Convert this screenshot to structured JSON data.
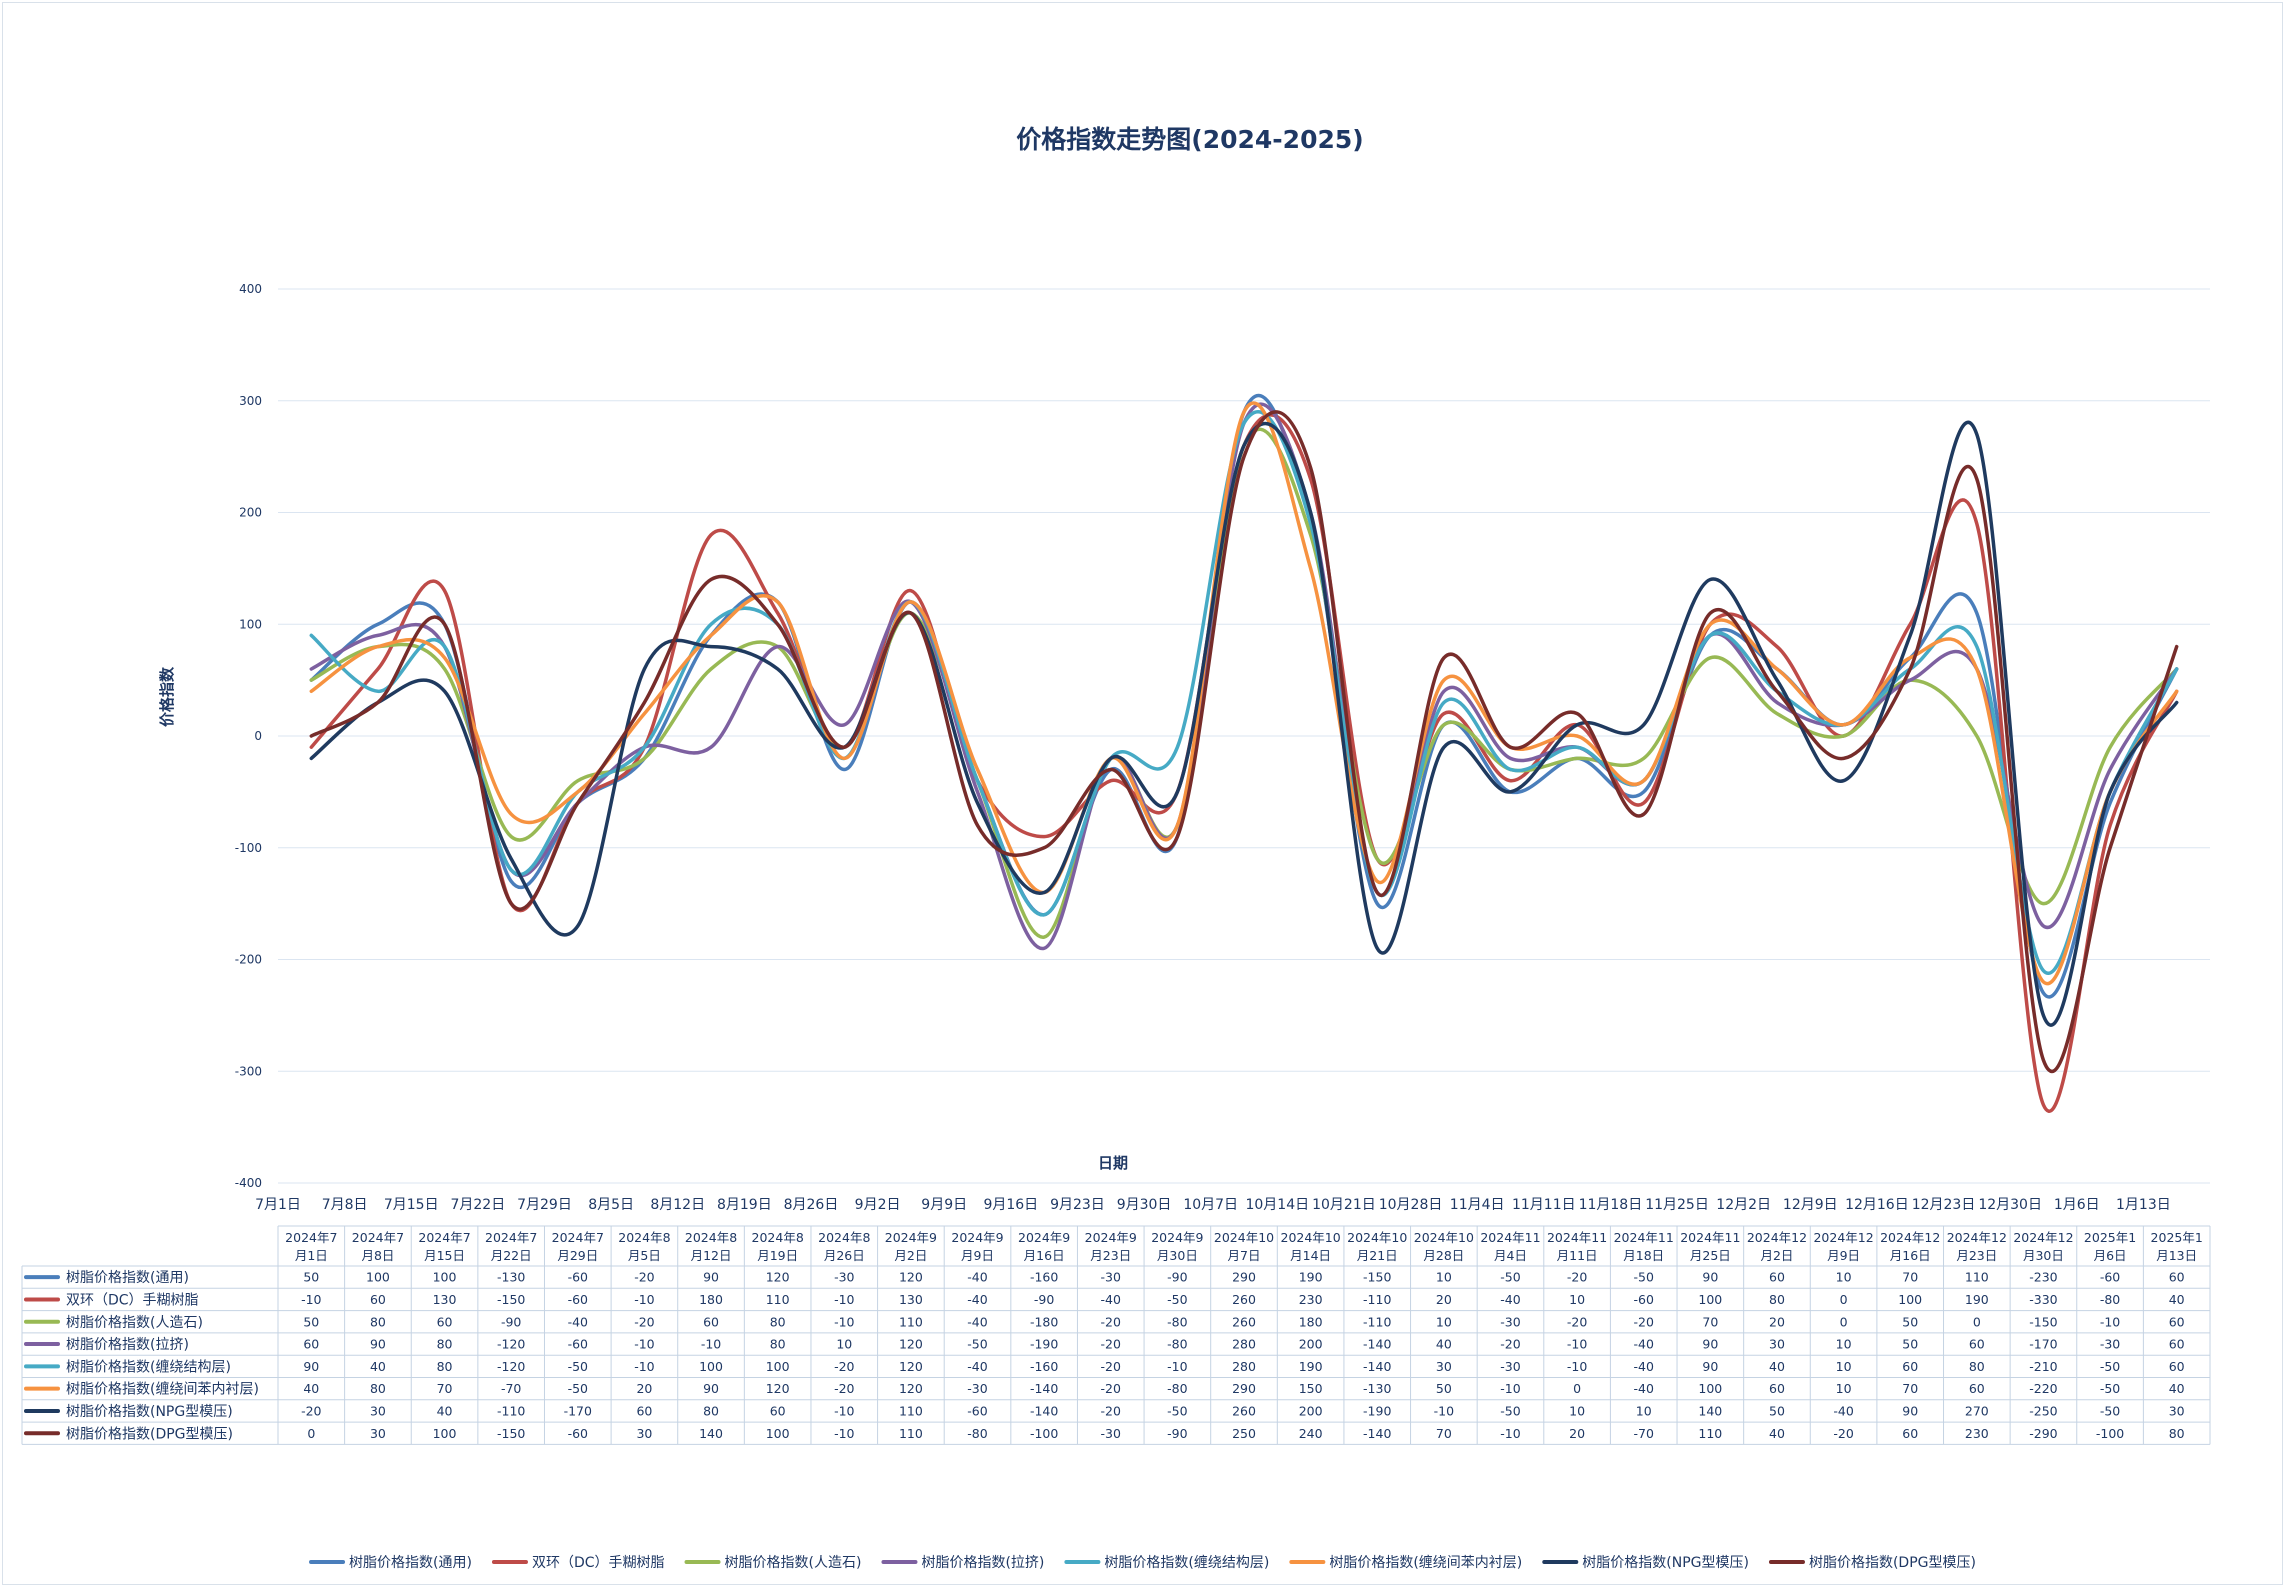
{
  "chart_data": {
    "type": "line",
    "title": "价格指数走势图(2024-2025)",
    "xlabel": "日期",
    "ylabel": "价格指数",
    "ylim": [
      -400,
      400
    ],
    "yticks": [
      400,
      300,
      200,
      100,
      0,
      -100,
      -200,
      -300,
      -400
    ],
    "grid": true,
    "legend_position": "bottom",
    "categories": [
      "7月1日",
      "7月8日",
      "7月15日",
      "7月22日",
      "7月29日",
      "8月5日",
      "8月12日",
      "8月19日",
      "8月26日",
      "9月2日",
      "9月9日",
      "9月16日",
      "9月23日",
      "9月30日",
      "10月7日",
      "10月14日",
      "10月21日",
      "10月28日",
      "11月4日",
      "11月11日",
      "11月18日",
      "11月25日",
      "12月2日",
      "12月9日",
      "12月16日",
      "12月23日",
      "12月30日",
      "1月6日",
      "1月13日"
    ],
    "table_headers": [
      [
        "2024年7",
        "月1日"
      ],
      [
        "2024年7",
        "月8日"
      ],
      [
        "2024年7",
        "月15日"
      ],
      [
        "2024年7",
        "月22日"
      ],
      [
        "2024年7",
        "月29日"
      ],
      [
        "2024年8",
        "月5日"
      ],
      [
        "2024年8",
        "月12日"
      ],
      [
        "2024年8",
        "月19日"
      ],
      [
        "2024年8",
        "月26日"
      ],
      [
        "2024年9",
        "月2日"
      ],
      [
        "2024年9",
        "月9日"
      ],
      [
        "2024年9",
        "月16日"
      ],
      [
        "2024年9",
        "月23日"
      ],
      [
        "2024年9",
        "月30日"
      ],
      [
        "2024年10",
        "月7日"
      ],
      [
        "2024年10",
        "月14日"
      ],
      [
        "2024年10",
        "月21日"
      ],
      [
        "2024年10",
        "月28日"
      ],
      [
        "2024年11",
        "月4日"
      ],
      [
        "2024年11",
        "月11日"
      ],
      [
        "2024年11",
        "月18日"
      ],
      [
        "2024年11",
        "月25日"
      ],
      [
        "2024年12",
        "月2日"
      ],
      [
        "2024年12",
        "月9日"
      ],
      [
        "2024年12",
        "月16日"
      ],
      [
        "2024年12",
        "月23日"
      ],
      [
        "2024年12",
        "月30日"
      ],
      [
        "2025年1",
        "月6日"
      ],
      [
        "2025年1",
        "月13日"
      ]
    ],
    "series": [
      {
        "name": "树脂价格指数(通用)",
        "color": "#4a7ebb",
        "values": [
          50,
          100,
          100,
          -130,
          -60,
          -20,
          90,
          120,
          -30,
          120,
          -40,
          -160,
          -30,
          -90,
          290,
          190,
          -150,
          10,
          -50,
          -20,
          -50,
          90,
          60,
          10,
          70,
          110,
          -230,
          -60,
          60
        ]
      },
      {
        "name": "双环（DC）手糊树脂",
        "color": "#be4b48",
        "values": [
          -10,
          60,
          130,
          -150,
          -60,
          -10,
          180,
          110,
          -10,
          130,
          -40,
          -90,
          -40,
          -50,
          260,
          230,
          -110,
          20,
          -40,
          10,
          -60,
          100,
          80,
          0,
          100,
          190,
          -330,
          -80,
          40
        ]
      },
      {
        "name": "树脂价格指数(人造石)",
        "color": "#98b954",
        "values": [
          50,
          80,
          60,
          -90,
          -40,
          -20,
          60,
          80,
          -10,
          110,
          -40,
          -180,
          -20,
          -80,
          260,
          180,
          -110,
          10,
          -30,
          -20,
          -20,
          70,
          20,
          0,
          50,
          0,
          -150,
          -10,
          60
        ]
      },
      {
        "name": "树脂价格指数(拉挤)",
        "color": "#7d60a0",
        "values": [
          60,
          90,
          80,
          -120,
          -60,
          -10,
          -10,
          80,
          10,
          120,
          -50,
          -190,
          -20,
          -80,
          280,
          200,
          -140,
          40,
          -20,
          -10,
          -40,
          90,
          30,
          10,
          50,
          60,
          -170,
          -30,
          60
        ]
      },
      {
        "name": "树脂价格指数(缠绕结构层)",
        "color": "#46aac5",
        "values": [
          90,
          40,
          80,
          -120,
          -50,
          -10,
          100,
          100,
          -20,
          120,
          -40,
          -160,
          -20,
          -10,
          280,
          190,
          -140,
          30,
          -30,
          -10,
          -40,
          90,
          40,
          10,
          60,
          80,
          -210,
          -50,
          60
        ]
      },
      {
        "name": "树脂价格指数(缠绕间苯内衬层)",
        "color": "#f69240",
        "values": [
          40,
          80,
          70,
          -70,
          -50,
          20,
          90,
          120,
          -20,
          120,
          -30,
          -140,
          -20,
          -80,
          290,
          150,
          -130,
          50,
          -10,
          0,
          -40,
          100,
          60,
          10,
          70,
          60,
          -220,
          -50,
          40
        ]
      },
      {
        "name": "树脂价格指数(NPG型模压)",
        "color": "#1f3a5f",
        "values": [
          -20,
          30,
          40,
          -110,
          -170,
          60,
          80,
          60,
          -10,
          110,
          -60,
          -140,
          -20,
          -50,
          260,
          200,
          -190,
          -10,
          -50,
          10,
          10,
          140,
          50,
          -40,
          90,
          270,
          -250,
          -50,
          30
        ]
      },
      {
        "name": "树脂价格指数(DPG型模压)",
        "color": "#772c2a",
        "values": [
          0,
          30,
          100,
          -150,
          -60,
          30,
          140,
          100,
          -10,
          110,
          -80,
          -100,
          -30,
          -90,
          250,
          240,
          -140,
          70,
          -10,
          20,
          -70,
          110,
          40,
          -20,
          60,
          230,
          -290,
          -100,
          80
        ]
      }
    ]
  }
}
